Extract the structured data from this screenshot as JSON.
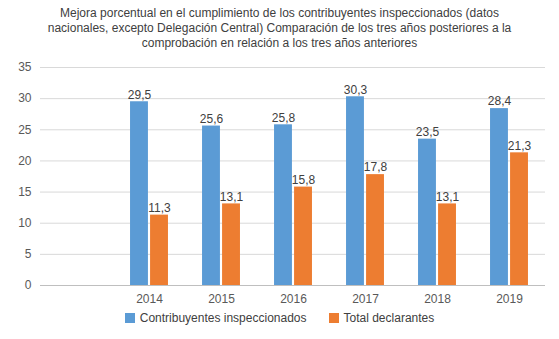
{
  "chart_data": {
    "type": "bar",
    "title": "Mejora porcentual en el cumplimiento de los contribuyentes inspeccionados (datos nacionales, excepto Delegación Central) Comparación de los tres años posteriores a la comprobación en relación a los tres años anteriores",
    "categories": [
      null,
      "2014",
      "2015",
      "2016",
      "2017",
      "2018",
      "2019"
    ],
    "series": [
      {
        "name": "Contribuyentes inspeccionados",
        "color": "#5b9bd5",
        "values": [
          null,
          29.5,
          25.6,
          25.8,
          30.3,
          23.5,
          28.4
        ],
        "value_labels": [
          null,
          "29,5",
          "25,6",
          "25,8",
          "30,3",
          "23,5",
          "28,4"
        ]
      },
      {
        "name": "Total declarantes",
        "color": "#ed7d31",
        "values": [
          null,
          11.3,
          13.1,
          15.8,
          17.8,
          13.1,
          21.3
        ],
        "value_labels": [
          null,
          "11,3",
          "13,1",
          "15,8",
          "17,8",
          "13,1",
          "21,3"
        ]
      }
    ],
    "ylim": [
      0,
      35
    ],
    "yticks": [
      0,
      5,
      10,
      15,
      20,
      25,
      30,
      35
    ],
    "grid": true,
    "data_labels": true,
    "legend": "bottom"
  }
}
